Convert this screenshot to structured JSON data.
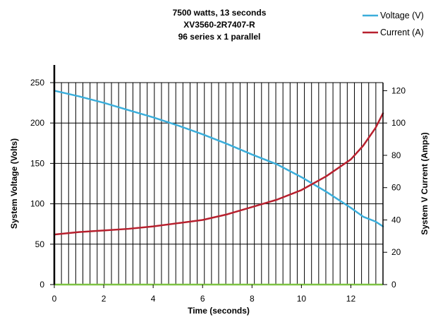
{
  "chart_data": {
    "type": "line",
    "title_lines": [
      "7500 watts, 13 seconds",
      "XV3560-2R7407-R",
      "96 series x 1 parallel"
    ],
    "xlabel": "Time (seconds)",
    "ylabel": "System Voltage (Volts)",
    "y2label": "System V Current (Amps)",
    "xlim": [
      0,
      13.3
    ],
    "ylim": [
      0,
      250
    ],
    "y2lim": [
      0,
      125
    ],
    "x_ticks": [
      "0",
      "2",
      "4",
      "6",
      "8",
      "10",
      "12"
    ],
    "y_ticks": [
      "0",
      "50",
      "100",
      "150",
      "200",
      "250"
    ],
    "y2_ticks": [
      "0",
      "20",
      "40",
      "60",
      "80",
      "100",
      "120"
    ],
    "grid": true,
    "legend_position": "top-right",
    "series": [
      {
        "name": "Voltage (V)",
        "axis": "left",
        "color": "#3BAEDB",
        "x": [
          0,
          1,
          2,
          3,
          4,
          5,
          6,
          7,
          8,
          9,
          10,
          11,
          12,
          12.5,
          13,
          13.3
        ],
        "y": [
          240,
          233,
          225,
          216,
          207,
          197,
          186,
          174,
          161,
          149,
          133,
          115,
          95,
          84,
          78,
          72
        ]
      },
      {
        "name": "Current (A)",
        "axis": "right",
        "color": "#B7202E",
        "x": [
          0,
          1,
          2,
          3,
          4,
          5,
          6,
          7,
          8,
          9,
          10,
          11,
          12,
          12.5,
          13,
          13.3
        ],
        "y": [
          31,
          32.5,
          33.5,
          34.5,
          36,
          38,
          40,
          43.5,
          48,
          52.5,
          58.5,
          67,
          77.5,
          86,
          97,
          106
        ]
      }
    ],
    "baseline": {
      "y": 0,
      "color": "#7DC242"
    }
  }
}
